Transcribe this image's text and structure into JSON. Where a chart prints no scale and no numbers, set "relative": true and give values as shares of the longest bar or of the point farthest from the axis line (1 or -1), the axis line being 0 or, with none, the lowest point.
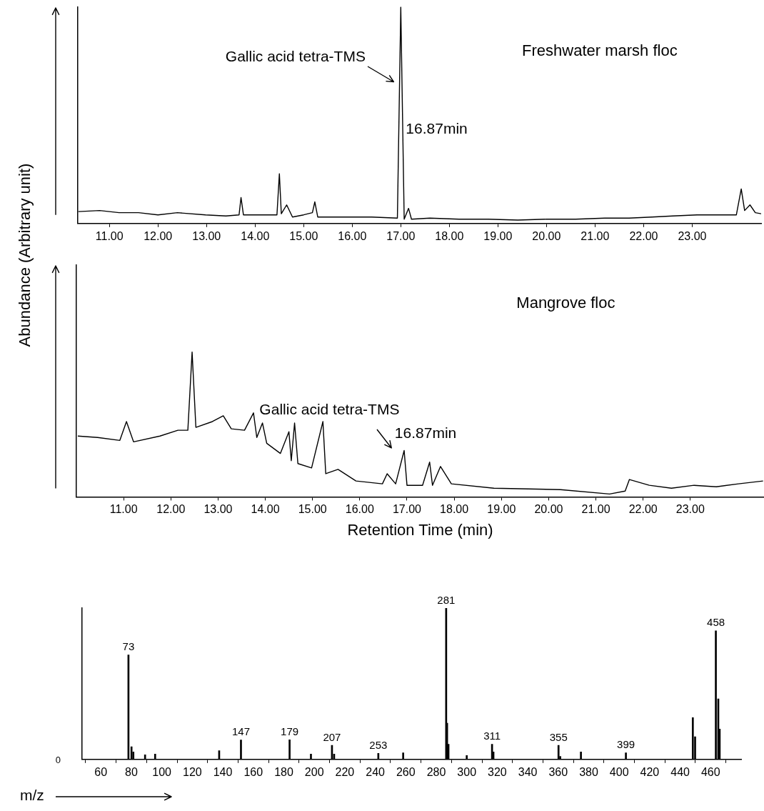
{
  "chart_data": [
    {
      "type": "line",
      "title": "Freshwater marsh floc",
      "ylabel": "Abundance (Arbitrary unit)",
      "relative": true,
      "color": "#000000",
      "x": [
        10.36,
        10.8,
        11.2,
        11.6,
        12.0,
        12.4,
        12.98,
        13.4,
        13.67,
        13.71,
        13.76,
        14.1,
        14.45,
        14.5,
        14.54,
        14.65,
        14.77,
        15.0,
        15.18,
        15.23,
        15.29,
        15.8,
        16.4,
        16.93,
        17.0,
        17.07,
        17.16,
        17.22,
        17.6,
        18.2,
        18.8,
        19.41,
        20.0,
        20.6,
        21.2,
        21.7,
        22.17,
        22.6,
        23.1,
        23.5,
        23.91,
        24.01,
        24.08,
        24.19,
        24.3,
        24.42
      ],
      "values": [
        0.055,
        0.06,
        0.05,
        0.05,
        0.04,
        0.05,
        0.04,
        0.035,
        0.04,
        0.12,
        0.04,
        0.04,
        0.04,
        0.23,
        0.045,
        0.086,
        0.03,
        0.04,
        0.05,
        0.1,
        0.03,
        0.03,
        0.03,
        0.025,
        1,
        0.02,
        0.07,
        0.02,
        0.025,
        0.02,
        0.02,
        0.016,
        0.02,
        0.02,
        0.025,
        0.025,
        0.03,
        0.035,
        0.04,
        0.04,
        0.04,
        0.16,
        0.06,
        0.086,
        0.05,
        0.045
      ],
      "xlim": [
        10.35,
        24.42
      ],
      "xticks": [
        {
          "value": 11,
          "label": "11.00"
        },
        {
          "value": 12,
          "label": "12.00"
        },
        {
          "value": 13,
          "label": "13.00"
        },
        {
          "value": 14,
          "label": "14.00"
        },
        {
          "value": 15,
          "label": "15.00"
        },
        {
          "value": 16,
          "label": "16.00"
        },
        {
          "value": 17,
          "label": "17.00"
        },
        {
          "value": 18,
          "label": "18.00"
        },
        {
          "value": 19,
          "label": "19.00"
        },
        {
          "value": 20,
          "label": "20.00"
        },
        {
          "value": 21,
          "label": "21.00"
        },
        {
          "value": 22,
          "label": "22.00"
        },
        {
          "value": 23,
          "label": "23.00"
        }
      ],
      "annotations": [
        "Gallic acid tetra-TMS",
        "16.87min"
      ]
    },
    {
      "type": "line",
      "title": "Mangrove floc",
      "xlabel": "Retention Time (min)",
      "relative": true,
      "color": "#000000",
      "x": [
        10.03,
        10.45,
        10.92,
        11.06,
        11.21,
        11.77,
        12.15,
        12.36,
        12.45,
        12.53,
        12.88,
        13.11,
        13.28,
        13.56,
        13.75,
        13.82,
        13.94,
        14.03,
        14.32,
        14.5,
        14.55,
        14.62,
        14.69,
        14.98,
        15.22,
        15.28,
        15.54,
        15.92,
        16.48,
        16.58,
        16.76,
        16.94,
        17.0,
        17.33,
        17.48,
        17.54,
        17.71,
        17.94,
        18.84,
        20.25,
        21.29,
        21.62,
        21.71,
        22.13,
        22.6,
        23.08,
        23.55,
        24.02,
        24.54
      ],
      "values": [
        0.42,
        0.41,
        0.39,
        0.52,
        0.38,
        0.42,
        0.46,
        0.46,
        1,
        0.48,
        0.52,
        0.56,
        0.47,
        0.46,
        0.58,
        0.41,
        0.51,
        0.37,
        0.3,
        0.45,
        0.25,
        0.51,
        0.23,
        0.2,
        0.52,
        0.16,
        0.19,
        0.11,
        0.09,
        0.16,
        0.09,
        0.32,
        0.08,
        0.08,
        0.24,
        0.08,
        0.21,
        0.09,
        0.06,
        0.05,
        0.02,
        0.04,
        0.12,
        0.08,
        0.06,
        0.08,
        0.07,
        0.09,
        0.11
      ],
      "xlim": [
        10.0,
        24.56
      ],
      "xticks": [
        {
          "value": 11,
          "label": "11.00"
        },
        {
          "value": 12,
          "label": "12.00"
        },
        {
          "value": 13,
          "label": "13.00"
        },
        {
          "value": 14,
          "label": "14.00"
        },
        {
          "value": 15,
          "label": "15.00"
        },
        {
          "value": 16,
          "label": "16.00"
        },
        {
          "value": 17,
          "label": "17.00"
        },
        {
          "value": 18,
          "label": "18.00"
        },
        {
          "value": 19,
          "label": "19.00"
        },
        {
          "value": 20,
          "label": "20.00"
        },
        {
          "value": 21,
          "label": "21.00"
        },
        {
          "value": 22,
          "label": "22.00"
        },
        {
          "value": 23,
          "label": "23.00"
        }
      ],
      "annotations": [
        "Gallic acid tetra-TMS",
        "16.87min"
      ]
    },
    {
      "type": "bar",
      "xlabel": "m/z",
      "relative": true,
      "color": "#000000",
      "x": [
        78.1,
        80.1,
        81.3,
        89,
        95.6,
        137.6,
        151.9,
        183.8,
        197.8,
        211.6,
        213,
        242,
        258.3,
        286.5,
        287.1,
        288,
        300,
        316.6,
        317.5,
        360.2,
        361.3,
        374.9,
        404.4,
        448.3,
        449.8,
        463.4,
        465,
        465.9
      ],
      "values": [
        0.69,
        0.084,
        0.05,
        0.03,
        0.035,
        0.058,
        0.128,
        0.13,
        0.035,
        0.093,
        0.035,
        0.04,
        0.044,
        1,
        0.24,
        0.1,
        0.026,
        0.1,
        0.05,
        0.093,
        0.02,
        0.05,
        0.044,
        0.276,
        0.15,
        0.85,
        0.4,
        0.2
      ],
      "xlim": [
        47.7,
        480
      ],
      "xticks": [
        60,
        80,
        100,
        120,
        140,
        160,
        180,
        200,
        220,
        240,
        260,
        280,
        300,
        320,
        340,
        360,
        380,
        400,
        420,
        440,
        460
      ],
      "annotations": [
        "0",
        {
          "text": "73",
          "x": 78.1,
          "y": 0.69
        },
        {
          "text": "147",
          "x": 151.9,
          "y": 0.128
        },
        {
          "text": "179",
          "x": 183.8,
          "y": 0.13
        },
        {
          "text": "207",
          "x": 211.6,
          "y": 0.093
        },
        {
          "text": "253",
          "x": 242,
          "y": 0.04
        },
        {
          "text": "281",
          "x": 286.5,
          "y": 1
        },
        {
          "text": "311",
          "x": 316.6,
          "y": 0.1
        },
        {
          "text": "355",
          "x": 360.2,
          "y": 0.093
        },
        {
          "text": "399",
          "x": 404.4,
          "y": 0.044
        },
        {
          "text": "458",
          "x": 463.4,
          "y": 0.85
        }
      ]
    }
  ]
}
